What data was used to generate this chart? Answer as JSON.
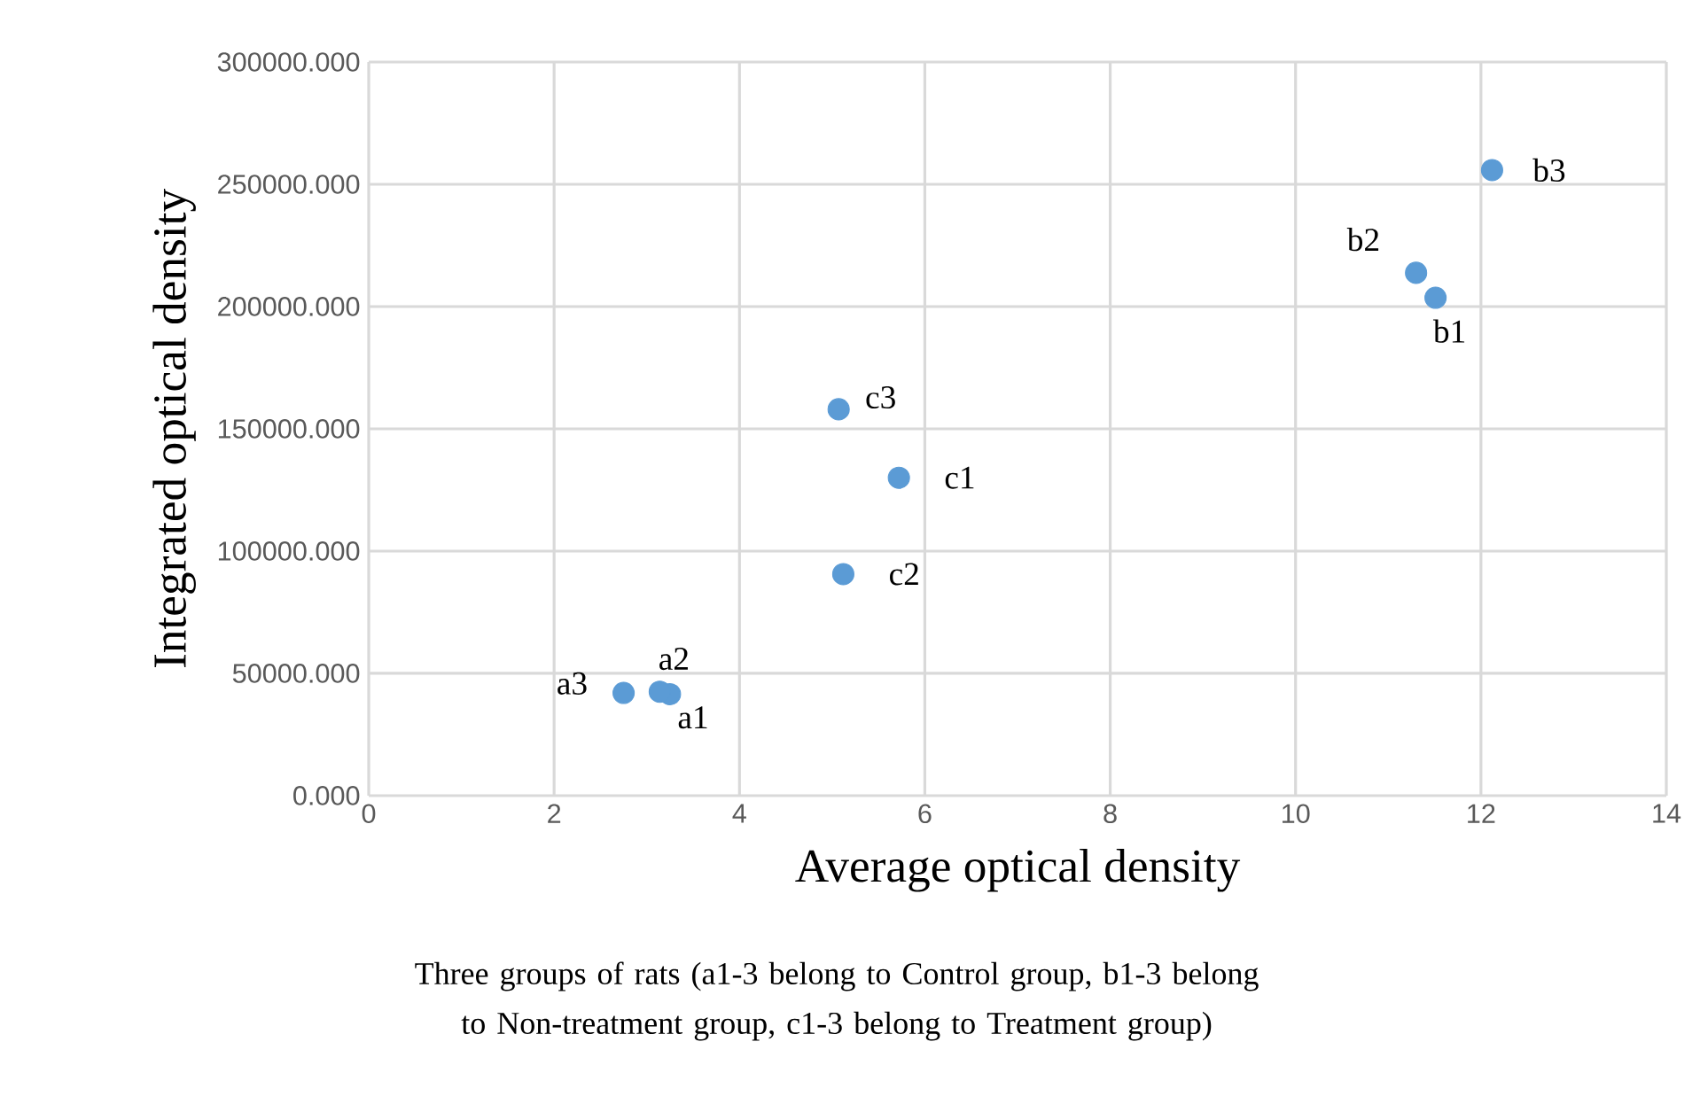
{
  "chart_data": {
    "type": "scatter",
    "xlabel": "Average optical density",
    "ylabel": "Integrated optical density",
    "annotations": [
      "Three groups of rats (a1-3 belong to Control group, b1-3 belong to Non-treatment group, c1-3 belong to Treatment group)"
    ],
    "series": [
      {
        "color": "#5b9bd5",
        "x": [
          3.25,
          3.14,
          2.75,
          11.51,
          11.3,
          12.12,
          5.72,
          5.12,
          5.07
        ],
        "values": [
          41500,
          42500,
          42000,
          203600,
          213800,
          255800,
          130000,
          90600,
          158000
        ],
        "value_labels": [
          "a1",
          "a2",
          "a3",
          "b1",
          "b2",
          "b3",
          "c1",
          "c2",
          "c3"
        ]
      }
    ],
    "xlim": [
      0,
      14
    ],
    "xticks": [
      0,
      2,
      4,
      6,
      8,
      10,
      12,
      14
    ],
    "ylim": [
      0,
      300000
    ],
    "yticks": [
      {
        "value": 0,
        "label": "0.000"
      },
      {
        "value": 50000,
        "label": "50000.000"
      },
      {
        "value": 100000,
        "label": "100000.000"
      },
      {
        "value": 150000,
        "label": "150000.000"
      },
      {
        "value": 200000,
        "label": "200000.000"
      },
      {
        "value": 250000,
        "label": "250000.000"
      },
      {
        "value": 300000,
        "label": "300000.000"
      }
    ],
    "grid": true,
    "marker": "circle"
  }
}
